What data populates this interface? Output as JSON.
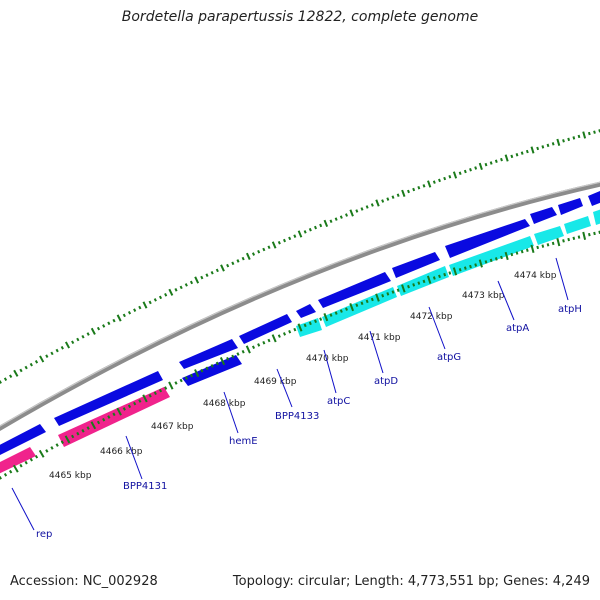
{
  "title": "Bordetella parapertussis 12822, complete genome",
  "accession": "Accession: NC_002928",
  "summary": "Topology: circular; Length: 4,773,551 bp; Genes: 4,249",
  "colors": {
    "backbone": "#8c8c8c",
    "forward_gene": "#0a0ae0",
    "cds_pink": "#f0238c",
    "cds_cyan": "#18e8e8",
    "minor_tick": "#1a7a1a",
    "label_line": "#1010c8"
  },
  "scale_labels": [
    "4465 kbp",
    "4466 kbp",
    "4467 kbp",
    "4468 kbp",
    "4469 kbp",
    "4470 kbp",
    "4471 kbp",
    "4472 kbp",
    "4473 kbp",
    "4474 kbp"
  ],
  "gene_labels": [
    "rep",
    "BPP4131",
    "hemE",
    "BPP4133",
    "atpC",
    "atpD",
    "atpG",
    "atpA",
    "atpH"
  ]
}
